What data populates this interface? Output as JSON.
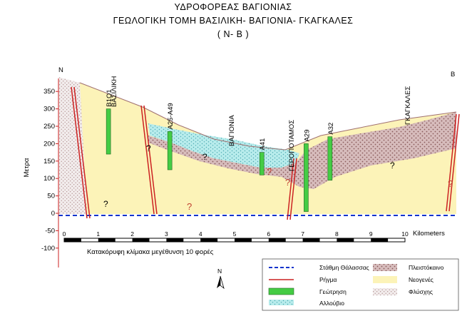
{
  "title": {
    "line1": "ΥΔΡΟΦΟΡΕΑΣ  ΒΑΓΙΟΝΙΑΣ",
    "line2": "ΓΕΩΛΟΓΙΚΗ  ΤΟΜΗ  ΒΑΣΙΛΙΚΗ- ΒΑΓΙΟΝΙΑ- ΓΚΑΓΚΑΛΕΣ",
    "line3": "( Ν-  Β )"
  },
  "ends": {
    "north": "Ν",
    "south": "Β"
  },
  "y_axis": {
    "label": "Μετρα",
    "ticks": [
      "350",
      "300",
      "250",
      "200",
      "150",
      "100",
      "50",
      "0",
      "-50",
      "-100"
    ]
  },
  "x_axis": {
    "ticks": [
      "0",
      "1",
      "2",
      "3",
      "4",
      "5",
      "6",
      "7",
      "8",
      "9",
      "10"
    ],
    "unit": "Kilometers"
  },
  "scale_note": "Κατακόρυφη κλίμακα μεγέθυνση 10 φορές",
  "places": [
    "ΒΑΣΙΛΙΚΗ",
    "ΒΑΓΙΟΝΙΑ",
    "ΓΕΡΟΠΟΤΑΜΟΣ",
    "ΓΚΑΓΚΑΛΕΣ"
  ],
  "boreholes": [
    {
      "name": "Β1Ο1",
      "km": 1.3,
      "top": 300,
      "bottom": 170
    },
    {
      "name": "Α25-Α49",
      "km": 3.1,
      "top": 235,
      "bottom": 125
    },
    {
      "name": "Α41",
      "km": 5.8,
      "top": 175,
      "bottom": 110
    },
    {
      "name": "Α29",
      "km": 7.1,
      "top": 200,
      "bottom": 5
    },
    {
      "name": "Α32",
      "km": 7.8,
      "top": 220,
      "bottom": 95
    }
  ],
  "unknown_mark": "?",
  "north_arrow": "N",
  "legend": {
    "sea_level": "Στάθμη Θάλασσας",
    "fault": "Ρήγμα",
    "borehole": "Γεώτρηση",
    "alluvium": "Αλλούβιο",
    "pleistocene": "Πλειστόκαινο",
    "neogene": "Νεογενές",
    "flysch": "Φλύσχης"
  },
  "colors": {
    "neogene": "#fcf3b8",
    "alluvium": "#a8e4e4",
    "pleistocene": "#c8a8a8",
    "flysch": "#e8e0e0",
    "borehole": "#44cc44",
    "fault": "#cc2222",
    "sea_level": "#1133cc",
    "question": "#c04030"
  }
}
